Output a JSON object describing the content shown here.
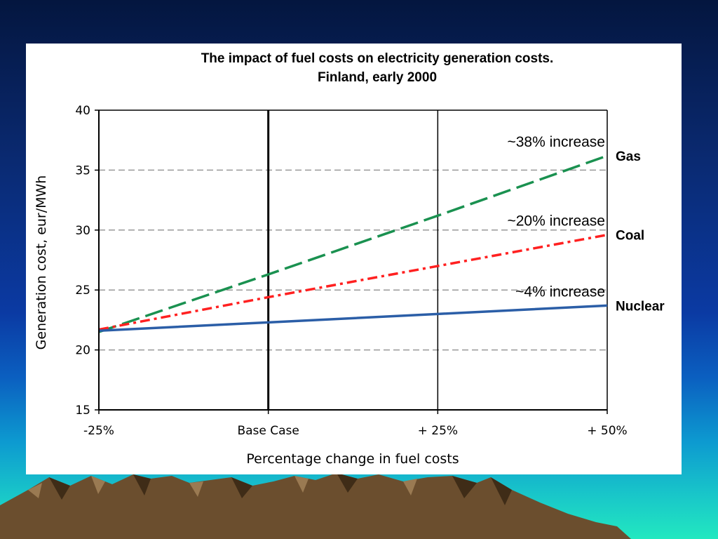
{
  "slide": {
    "background_top": "#04163f",
    "background_bottom": "#22e8c0"
  },
  "chart_data": {
    "type": "line",
    "title": "The impact of fuel costs on electricity generation costs.",
    "subtitle": "Finland, early 2000",
    "xlabel": "Percentage change in fuel costs",
    "ylabel": "Generation cost, eur/MWh",
    "categories": [
      "-25%",
      "Base Case",
      "+ 25%",
      "+ 50%"
    ],
    "ylim": [
      15,
      40
    ],
    "yticks": [
      "15",
      "20",
      "25",
      "30",
      "35",
      "40"
    ],
    "grid": "horizontal dashed",
    "series": [
      {
        "name": "Gas",
        "color": "#1a9150",
        "style": "dashed",
        "values": [
          21.5,
          26.3,
          31.2,
          36.2
        ]
      },
      {
        "name": "Coal",
        "color": "#ff2020",
        "style": "dash-dot",
        "values": [
          21.7,
          24.4,
          27.0,
          29.6
        ]
      },
      {
        "name": "Nuclear",
        "color": "#2b5ea7",
        "style": "solid",
        "values": [
          21.6,
          22.3,
          23.0,
          23.7
        ]
      }
    ],
    "annotations": [
      {
        "text": "~38% increase",
        "series": "Gas"
      },
      {
        "text": "~20% increase",
        "series": "Coal"
      },
      {
        "text": "~4% increase",
        "series": "Nuclear"
      }
    ]
  }
}
